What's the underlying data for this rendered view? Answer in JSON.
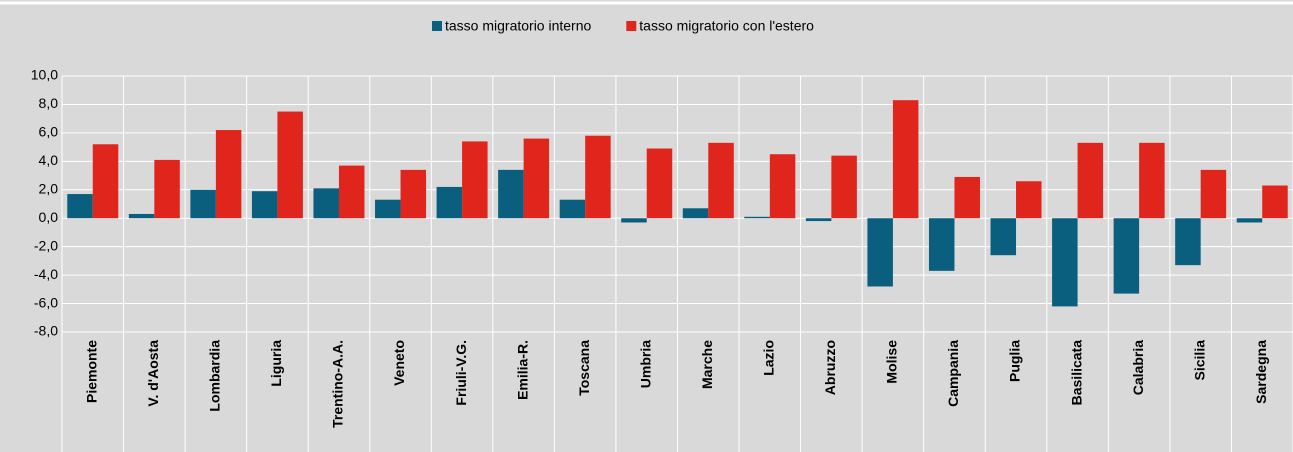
{
  "chart_data": {
    "type": "bar",
    "categories": [
      "Piemonte",
      "V. d'Aosta",
      "Lombardia",
      "Liguria",
      "Trentino-A.A.",
      "Veneto",
      "Friuli-V.G.",
      "Emilia-R.",
      "Toscana",
      "Umbria",
      "Marche",
      "Lazio",
      "Abruzzo",
      "Molise",
      "Campania",
      "Puglia",
      "Basilicata",
      "Calabria",
      "Sicilia",
      "Sardegna"
    ],
    "series": [
      {
        "name": "tasso migratorio interno",
        "color": "#0b5f7e",
        "values": [
          1.7,
          0.3,
          2.0,
          1.9,
          2.1,
          1.3,
          2.2,
          3.4,
          1.3,
          -0.3,
          0.7,
          0.1,
          -0.2,
          -4.8,
          -3.7,
          -2.6,
          -6.2,
          -5.3,
          -3.3,
          -0.3
        ]
      },
      {
        "name": "tasso migratorio con l'estero",
        "color": "#e0261c",
        "values": [
          5.2,
          4.1,
          6.2,
          7.5,
          3.7,
          3.4,
          5.4,
          5.6,
          5.8,
          4.9,
          5.3,
          4.5,
          4.4,
          8.3,
          2.9,
          2.6,
          5.3,
          5.3,
          3.4,
          2.3
        ]
      }
    ],
    "ylim": [
      -8,
      10
    ],
    "yticks": [
      {
        "value": -8,
        "label": "-8,0"
      },
      {
        "value": -6,
        "label": "-6,0"
      },
      {
        "value": -4,
        "label": "-4,0"
      },
      {
        "value": -2,
        "label": "-2,0"
      },
      {
        "value": 0,
        "label": "0,0"
      },
      {
        "value": 2,
        "label": "2,0"
      },
      {
        "value": 4,
        "label": "4,0"
      },
      {
        "value": 6,
        "label": "6,0"
      },
      {
        "value": 8,
        "label": "8,0"
      },
      {
        "value": 10,
        "label": "10,0"
      }
    ],
    "grid": true,
    "legend": "top"
  }
}
